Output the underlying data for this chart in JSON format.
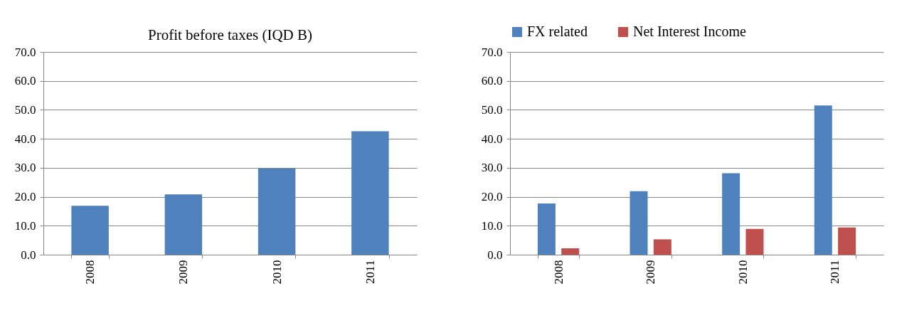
{
  "chart_data": [
    {
      "type": "bar",
      "title": "Profit before taxes (IQD B)",
      "categories": [
        "2008",
        "2009",
        "2010",
        "2011"
      ],
      "series": [
        {
          "color": "#4f81bd",
          "values": [
            16.9,
            20.8,
            29.8,
            42.6
          ]
        }
      ],
      "ylim": [
        0,
        70
      ],
      "yticks": [
        {
          "value": 0,
          "label": "0.0"
        },
        {
          "value": 10,
          "label": "10.0"
        },
        {
          "value": 20,
          "label": "20.0"
        },
        {
          "value": 30,
          "label": "30.0"
        },
        {
          "value": 40,
          "label": "40.0"
        },
        {
          "value": 50,
          "label": "50.0"
        },
        {
          "value": 60,
          "label": "60.0"
        },
        {
          "value": 70,
          "label": "70.0"
        }
      ],
      "grid": "y",
      "legend": false
    },
    {
      "type": "bar",
      "categories": [
        "2008",
        "2009",
        "2010",
        "2011"
      ],
      "series": [
        {
          "name": "FX related",
          "color": "#4f81bd",
          "values": [
            17.7,
            21.9,
            28.1,
            51.5
          ]
        },
        {
          "name": "Net Interest Income",
          "color": "#c0504d",
          "values": [
            2.2,
            5.3,
            8.9,
            9.4
          ]
        }
      ],
      "ylim": [
        0,
        70
      ],
      "yticks": [
        {
          "value": 0,
          "label": "0.0"
        },
        {
          "value": 10,
          "label": "10.0"
        },
        {
          "value": 20,
          "label": "20.0"
        },
        {
          "value": 30,
          "label": "30.0"
        },
        {
          "value": 40,
          "label": "40.0"
        },
        {
          "value": 50,
          "label": "50.0"
        },
        {
          "value": 60,
          "label": "60.0"
        },
        {
          "value": 70,
          "label": "70.0"
        }
      ],
      "grid": "y",
      "legend": "top"
    }
  ]
}
